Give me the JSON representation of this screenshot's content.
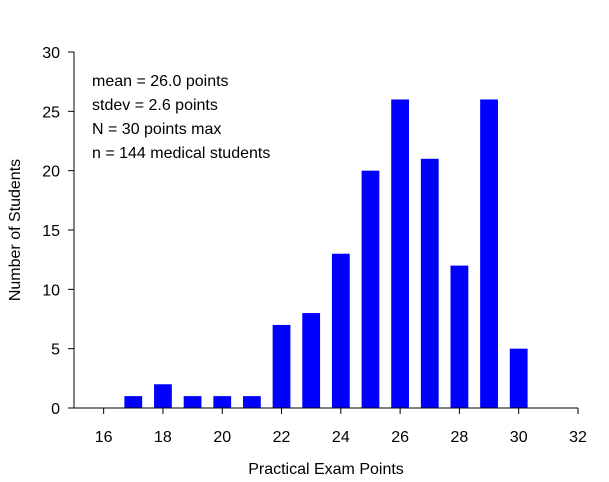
{
  "chart_data": {
    "type": "bar",
    "title": "",
    "xlabel": "Practical Exam Points",
    "ylabel": "Number of Students",
    "xlim": [
      15,
      32
    ],
    "ylim": [
      0,
      30
    ],
    "xticks": [
      16,
      18,
      20,
      22,
      24,
      26,
      28,
      30,
      32
    ],
    "yticks": [
      0,
      5,
      10,
      15,
      20,
      25,
      30
    ],
    "x": [
      17,
      18,
      19,
      20,
      21,
      22,
      23,
      24,
      25,
      26,
      27,
      28,
      29,
      30
    ],
    "values": [
      1,
      2,
      1,
      1,
      1,
      7,
      8,
      13,
      20,
      26,
      21,
      12,
      26,
      5
    ],
    "bar_color": "#0000ff",
    "grid": false,
    "annotations": [
      "mean = 26.0 points",
      "stdev = 2.6 points",
      "N = 30 points max",
      "n = 144 medical students"
    ]
  }
}
